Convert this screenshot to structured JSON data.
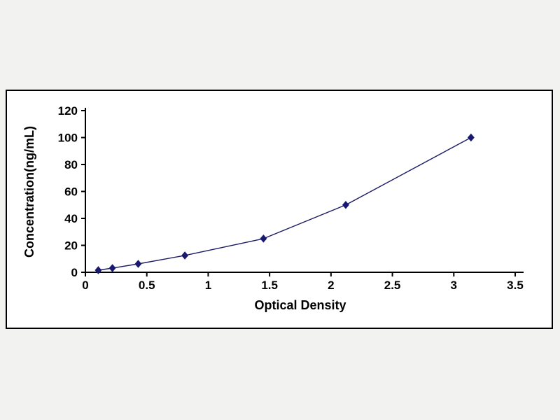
{
  "page": {
    "background": "#f2f2f0"
  },
  "chart_data": {
    "type": "line",
    "title": "",
    "xlabel": "Optical Density",
    "ylabel": "Concentration(ng/mL)",
    "x": [
      0.105,
      0.22,
      0.43,
      0.81,
      1.45,
      2.12,
      3.14
    ],
    "y": [
      1.56,
      3.12,
      6.25,
      12.5,
      25,
      50,
      100
    ],
    "xlim": [
      0,
      3.5
    ],
    "ylim": [
      0,
      120
    ],
    "x_ticks": [
      "0",
      "0.5",
      "1",
      "1.5",
      "2",
      "2.5",
      "3",
      "3.5"
    ],
    "y_ticks": [
      "0",
      "20",
      "40",
      "60",
      "80",
      "100",
      "120"
    ],
    "grid": false,
    "legend": null,
    "marker": "diamond",
    "colors": {
      "line": "#1c1c66",
      "marker": "#191970",
      "axis": "#000000",
      "text": "#000000",
      "panel_bg": "#ffffff",
      "panel_border": "#000000"
    }
  }
}
